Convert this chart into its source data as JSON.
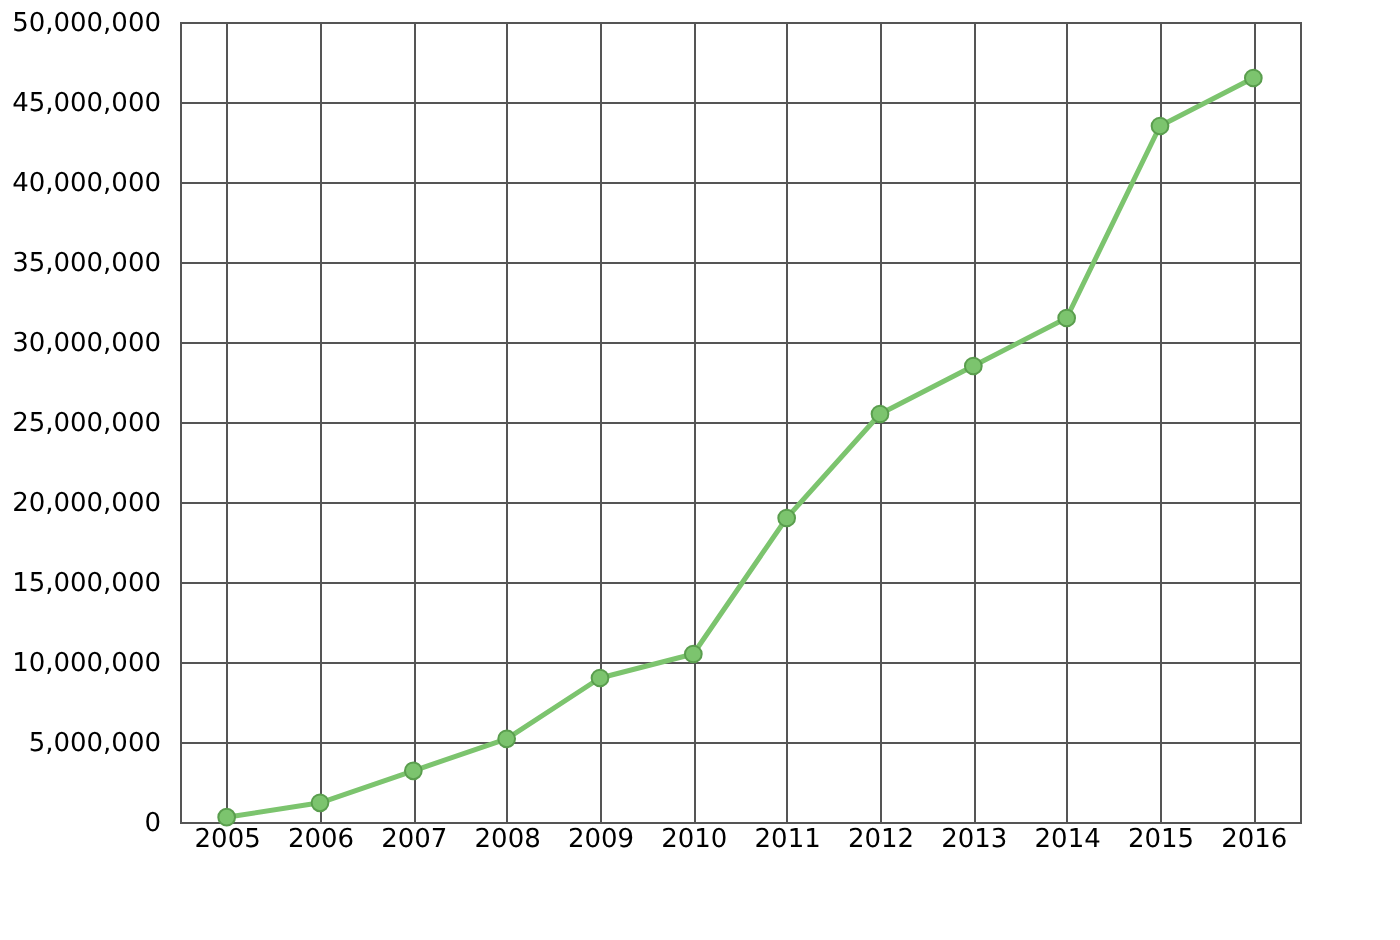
{
  "chart_data": {
    "type": "line",
    "categories": [
      "2005",
      "2006",
      "2007",
      "2008",
      "2009",
      "2010",
      "2011",
      "2012",
      "2013",
      "2014",
      "2015",
      "2016"
    ],
    "series": [
      {
        "color": "#7cc46e",
        "values": [
          300000,
          1200000,
          3200000,
          5200000,
          9000000,
          10500000,
          19000000,
          25500000,
          28500000,
          31500000,
          43500000,
          46500000
        ]
      }
    ],
    "ylim": [
      0,
      50000000
    ],
    "yticks": [
      0,
      {
        "value": 5000000,
        "label": "5,000,000"
      },
      {
        "value": 10000000,
        "label": "10,000,000"
      },
      {
        "value": 15000000,
        "label": "15,000,000"
      },
      {
        "value": 20000000,
        "label": "20,000,000"
      },
      {
        "value": 25000000,
        "label": "25,000,000"
      },
      {
        "value": 30000000,
        "label": "30,000,000"
      },
      {
        "value": 35000000,
        "label": "35,000,000"
      },
      {
        "value": 40000000,
        "label": "40,000,000"
      },
      {
        "value": 45000000,
        "label": "45,000,000"
      },
      {
        "value": 50000000,
        "label": "50,000,000"
      }
    ],
    "grid": true,
    "marker": "circle",
    "legend": false
  }
}
